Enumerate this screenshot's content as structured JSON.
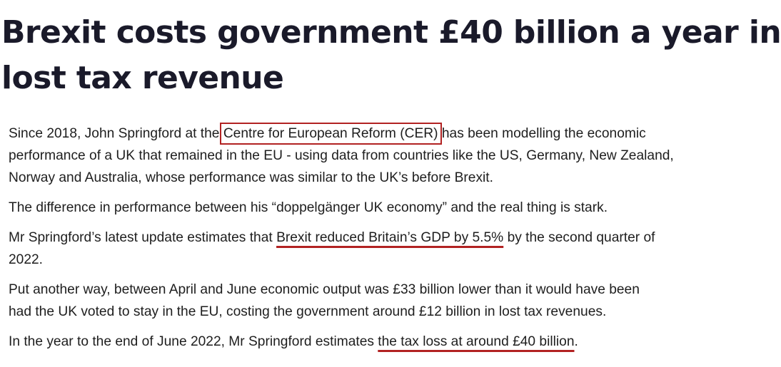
{
  "article": {
    "headline_line1": "Brexit costs government £40 billion a year in",
    "headline_line2": "lost tax revenue",
    "p1": {
      "l1_before": "Since 2018, John Springford at the ",
      "l1_boxed": "Centre for European Reform (CER)",
      "l1_after": " has been modelling the economic",
      "l2": "performance of a UK that remained in the EU - using data from countries like the US, Germany, New Zealand,",
      "l3": "Norway and Australia, whose performance was similar to the UK’s before Brexit."
    },
    "p2": {
      "l1": "The difference in performance between his “doppelgänger UK economy” and the real thing is stark."
    },
    "p3": {
      "l1_before": "Mr Springford’s latest update estimates that ",
      "l1_underlined": "Brexit reduced Britain’s GDP by 5.5%",
      "l1_after": " by the second quarter of",
      "l2": "2022."
    },
    "p4": {
      "l1": "Put another way, between April and June economic output was £33 billion lower than it would have been",
      "l2": "had the UK voted to stay in the EU, costing the government around £12 billion in lost tax revenues."
    },
    "p5": {
      "l1_before": "In the year to the end of June 2022, Mr Springford estimates ",
      "l1_underlined": "the tax loss at around £40 billion",
      "l1_after": "."
    }
  },
  "colors": {
    "annotation": "#b22222",
    "headline": "#1a1a2a",
    "body": "#1e1e1e",
    "background": "#ffffff"
  }
}
